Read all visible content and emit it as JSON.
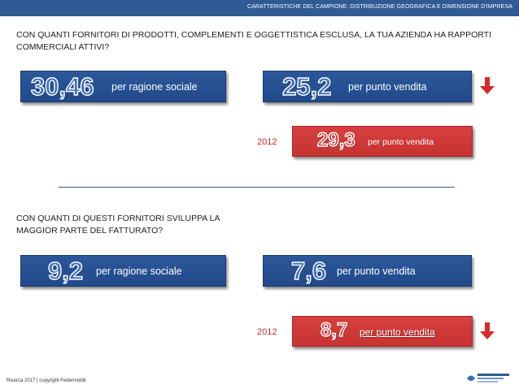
{
  "header": {
    "text": "CARATTERISTICHE DEL CAMPIONE: DISTRIBUZIONE GEOGRAFICA E DIMENSIONE D'IMPRESA"
  },
  "section1": {
    "question": "CON QUANTI FORNITORI DI PRODOTTI, COMPLEMENTI E OGGETTISTICA ESCLUSA, LA TUA AZIENDA HA RAPPORTI COMMERCIALI ATTIVI?",
    "ragione": {
      "value": "30,46",
      "label": "per ragione sociale"
    },
    "punto": {
      "value": "25,2",
      "label": "per punto vendita"
    },
    "prev": {
      "year": "2012",
      "value": "29,3",
      "label": "per punto vendita"
    }
  },
  "section2": {
    "question": "CON QUANTI DI QUESTI FORNITORI SVILUPPA LA MAGGIOR PARTE DEL FATTURATO?",
    "ragione": {
      "value": "9,2",
      "label": "per ragione sociale"
    },
    "punto": {
      "value": "7,6",
      "label": "per punto vendita"
    },
    "prev": {
      "year": "2012",
      "value": "8,7",
      "label": "per punto vendita"
    }
  },
  "footer": {
    "text": "Ricerca 2017 | copyright Federmobili"
  },
  "colors": {
    "header": "#2f5a94",
    "blue_box": "#214a8a",
    "red_box": "#c73332",
    "arrow": "#d62a2a"
  },
  "icons": {
    "trend": "down-arrow-icon"
  }
}
